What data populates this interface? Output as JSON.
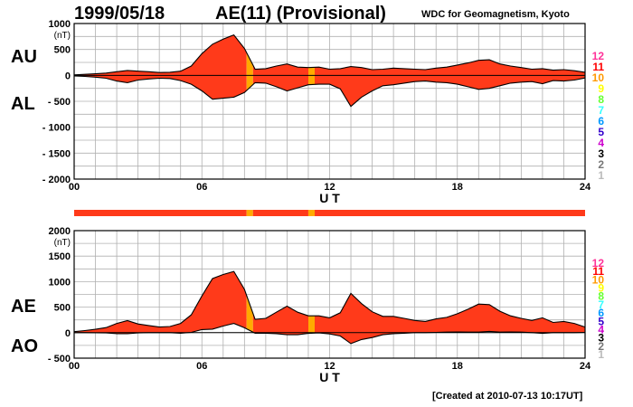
{
  "header": {
    "date": "1999/05/18",
    "title": "AE(11) (Provisional)",
    "source": "WDC for Geomagnetism, Kyoto",
    "created": "[Created at 2010-07-13 10:17UT]"
  },
  "labels": {
    "au": "AU",
    "al": "AL",
    "ae": "AE",
    "ao": "AO"
  },
  "station_scale": {
    "values": [
      "12",
      "11",
      "10",
      "9",
      "8",
      "7",
      "6",
      "5",
      "4",
      "3",
      "2",
      "1"
    ],
    "colors": [
      "#ff3399",
      "#ff0000",
      "#ff9900",
      "#ffff00",
      "#66ff33",
      "#33ffff",
      "#0099ff",
      "#3300cc",
      "#cc00cc",
      "#000000",
      "#777777",
      "#bbbbbb"
    ]
  },
  "colors": {
    "fill_11": "#ff3a1a",
    "fill_10": "#ffaa00",
    "outline": "#000000",
    "grid": "#b0b0b0"
  },
  "chart_data": [
    {
      "type": "area",
      "title": "AE(11) (Provisional)",
      "panel": "AU/AL",
      "xlabel": "U T",
      "ylabel": "(nT)",
      "ylim": [
        -2000,
        1000
      ],
      "xlim": [
        0,
        24
      ],
      "x_ticks": [
        "00",
        "06",
        "12",
        "18",
        "24"
      ],
      "y_ticks": [
        "1000",
        "500",
        "0",
        "- 500",
        "- 1000",
        "- 1500",
        "- 2000"
      ],
      "grid": true,
      "x": [
        0,
        0.5,
        1,
        1.5,
        2,
        2.5,
        3,
        3.5,
        4,
        4.5,
        5,
        5.5,
        6,
        6.5,
        7,
        7.5,
        8,
        8.5,
        9,
        9.5,
        10,
        10.5,
        11,
        11.5,
        12,
        12.5,
        13,
        13.5,
        14,
        14.5,
        15,
        15.5,
        16,
        16.5,
        17,
        17.5,
        18,
        18.5,
        19,
        19.5,
        20,
        20.5,
        21,
        21.5,
        22,
        22.5,
        23,
        23.5,
        24
      ],
      "series": [
        {
          "name": "AU",
          "values": [
            10,
            20,
            30,
            45,
            70,
            95,
            80,
            70,
            55,
            60,
            80,
            180,
            420,
            600,
            700,
            780,
            520,
            120,
            130,
            180,
            220,
            160,
            150,
            160,
            120,
            130,
            170,
            150,
            110,
            120,
            140,
            130,
            120,
            110,
            140,
            160,
            200,
            240,
            290,
            300,
            220,
            180,
            150,
            120,
            130,
            100,
            110,
            90,
            60
          ]
        },
        {
          "name": "AL",
          "values": [
            -10,
            -20,
            -35,
            -55,
            -110,
            -140,
            -90,
            -70,
            -55,
            -60,
            -100,
            -170,
            -300,
            -460,
            -440,
            -420,
            -330,
            -140,
            -150,
            -220,
            -300,
            -240,
            -180,
            -170,
            -170,
            -260,
            -600,
            -420,
            -300,
            -200,
            -180,
            -150,
            -120,
            -110,
            -130,
            -140,
            -170,
            -220,
            -270,
            -250,
            -200,
            -150,
            -130,
            -120,
            -160,
            -100,
            -110,
            -90,
            -50
          ]
        }
      ],
      "station_count_segments": [
        {
          "from": 0,
          "to": 8.1,
          "stations": 11
        },
        {
          "from": 8.1,
          "to": 8.4,
          "stations": 10
        },
        {
          "from": 8.4,
          "to": 11.0,
          "stations": 11
        },
        {
          "from": 11.0,
          "to": 11.3,
          "stations": 10
        },
        {
          "from": 11.3,
          "to": 24,
          "stations": 11
        }
      ]
    },
    {
      "type": "area",
      "title": "AE(11) (Provisional)",
      "panel": "AE/AO",
      "xlabel": "U T",
      "ylabel": "(nT)",
      "ylim": [
        -500,
        2000
      ],
      "xlim": [
        0,
        24
      ],
      "x_ticks": [
        "00",
        "06",
        "12",
        "18",
        "24"
      ],
      "y_ticks": [
        "2000",
        "1500",
        "1000",
        "500",
        "0",
        "- 500"
      ],
      "grid": true,
      "x": [
        0,
        0.5,
        1,
        1.5,
        2,
        2.5,
        3,
        3.5,
        4,
        4.5,
        5,
        5.5,
        6,
        6.5,
        7,
        7.5,
        8,
        8.5,
        9,
        9.5,
        10,
        10.5,
        11,
        11.5,
        12,
        12.5,
        13,
        13.5,
        14,
        14.5,
        15,
        15.5,
        16,
        16.5,
        17,
        17.5,
        18,
        18.5,
        19,
        19.5,
        20,
        20.5,
        21,
        21.5,
        22,
        22.5,
        23,
        23.5,
        24
      ],
      "series": [
        {
          "name": "AE",
          "values": [
            20,
            40,
            65,
            100,
            180,
            235,
            170,
            140,
            110,
            120,
            180,
            350,
            720,
            1060,
            1140,
            1200,
            850,
            260,
            280,
            400,
            520,
            400,
            330,
            330,
            290,
            390,
            770,
            570,
            410,
            320,
            320,
            280,
            240,
            220,
            270,
            300,
            370,
            460,
            560,
            550,
            420,
            330,
            280,
            240,
            290,
            200,
            220,
            180,
            110
          ]
        },
        {
          "name": "AO",
          "values": [
            0,
            0,
            -3,
            -5,
            -20,
            -22,
            -5,
            0,
            0,
            0,
            -10,
            5,
            60,
            70,
            130,
            180,
            95,
            -10,
            -10,
            -20,
            -40,
            -40,
            -15,
            -5,
            -25,
            -65,
            -215,
            -135,
            -95,
            -40,
            -20,
            -10,
            0,
            0,
            5,
            10,
            15,
            10,
            10,
            25,
            10,
            15,
            10,
            0,
            -15,
            0,
            0,
            0,
            5
          ]
        }
      ],
      "station_count_segments": [
        {
          "from": 0,
          "to": 8.1,
          "stations": 11
        },
        {
          "from": 8.1,
          "to": 8.4,
          "stations": 10
        },
        {
          "from": 8.4,
          "to": 11.0,
          "stations": 11
        },
        {
          "from": 11.0,
          "to": 11.3,
          "stations": 10
        },
        {
          "from": 11.3,
          "to": 24,
          "stations": 11
        }
      ]
    }
  ]
}
